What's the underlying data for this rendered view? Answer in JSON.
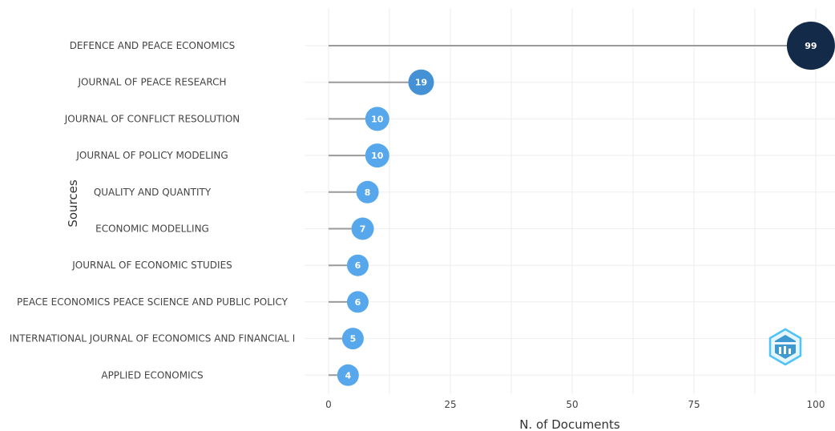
{
  "chart_data": {
    "type": "lollipop",
    "orientation": "horizontal",
    "xlabel": "N. of Documents",
    "ylabel": "Sources",
    "xlim": [
      0,
      100
    ],
    "xticks": [
      0,
      25,
      50,
      75,
      100
    ],
    "grid": true,
    "categories": [
      "DEFENCE AND PEACE ECONOMICS",
      "JOURNAL OF PEACE RESEARCH",
      "JOURNAL OF CONFLICT RESOLUTION",
      "JOURNAL OF POLICY MODELING",
      "QUALITY AND QUANTITY",
      "ECONOMIC MODELLING",
      "JOURNAL OF ECONOMIC STUDIES",
      "PEACE ECONOMICS PEACE SCIENCE AND PUBLIC POLICY",
      "INTERNATIONAL JOURNAL OF ECONOMICS AND FINANCIAL I",
      "APPLIED ECONOMICS"
    ],
    "values": [
      99,
      19,
      10,
      10,
      8,
      7,
      6,
      6,
      5,
      4
    ],
    "colors": {
      "max": "#132b48",
      "high": "#4591d6",
      "normal": "#56a7ec",
      "stem": "#9a9a9a",
      "grid": "#eeeeee"
    }
  },
  "watermark": {
    "name": "bibliometrix-logo-icon",
    "colors": [
      "#4fc3f7",
      "#1e88c8"
    ]
  }
}
